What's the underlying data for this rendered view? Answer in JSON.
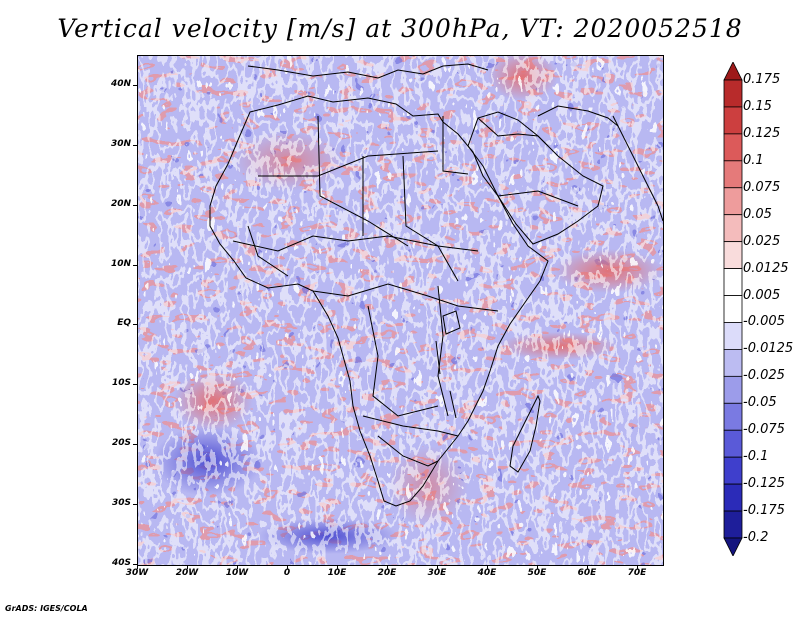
{
  "title": "Vertical velocity [m/s] at 300hPa, VT: 2020052518",
  "footer": "GrADS: IGES/COLA",
  "chart_data": {
    "type": "heatmap",
    "title": "Vertical velocity [m/s] at 300hPa, VT: 2020052518",
    "xlim": [
      -30,
      75
    ],
    "ylim": [
      -40,
      45
    ],
    "lat_ticks": [
      {
        "value": 40,
        "label": "40N"
      },
      {
        "value": 30,
        "label": "30N"
      },
      {
        "value": 20,
        "label": "20N"
      },
      {
        "value": 10,
        "label": "10N"
      },
      {
        "value": 0,
        "label": "EQ"
      },
      {
        "value": -10,
        "label": "10S"
      },
      {
        "value": -20,
        "label": "20S"
      },
      {
        "value": -30,
        "label": "30S"
      },
      {
        "value": -40,
        "label": "40S"
      }
    ],
    "lon_ticks": [
      {
        "value": -30,
        "label": "30W"
      },
      {
        "value": -20,
        "label": "20W"
      },
      {
        "value": -10,
        "label": "10W"
      },
      {
        "value": 0,
        "label": "0"
      },
      {
        "value": 10,
        "label": "10E"
      },
      {
        "value": 20,
        "label": "20E"
      },
      {
        "value": 30,
        "label": "30E"
      },
      {
        "value": 40,
        "label": "40E"
      },
      {
        "value": 50,
        "label": "50E"
      },
      {
        "value": 60,
        "label": "60E"
      },
      {
        "value": 70,
        "label": "70E"
      }
    ],
    "colorbar": {
      "labels": [
        "0.175",
        "0.15",
        "0.125",
        "0.1",
        "0.075",
        "0.05",
        "0.025",
        "0.0125",
        "0.005",
        "-0.005",
        "-0.0125",
        "-0.025",
        "-0.05",
        "-0.075",
        "-0.1",
        "-0.125",
        "-0.175",
        "-0.2"
      ],
      "colors": [
        "#9e1a1a",
        "#b82b2b",
        "#cc3f3f",
        "#dc5a5a",
        "#e57a7a",
        "#ee9c9c",
        "#f4bcbc",
        "#f9dcdc",
        "#ffffff",
        "#ffffff",
        "#dcdcfa",
        "#bcbcf2",
        "#9c9cea",
        "#7a7ae2",
        "#5a5ad8",
        "#3f3fcc",
        "#2b2bb8",
        "#1e1e9a",
        "#14147e"
      ]
    }
  }
}
